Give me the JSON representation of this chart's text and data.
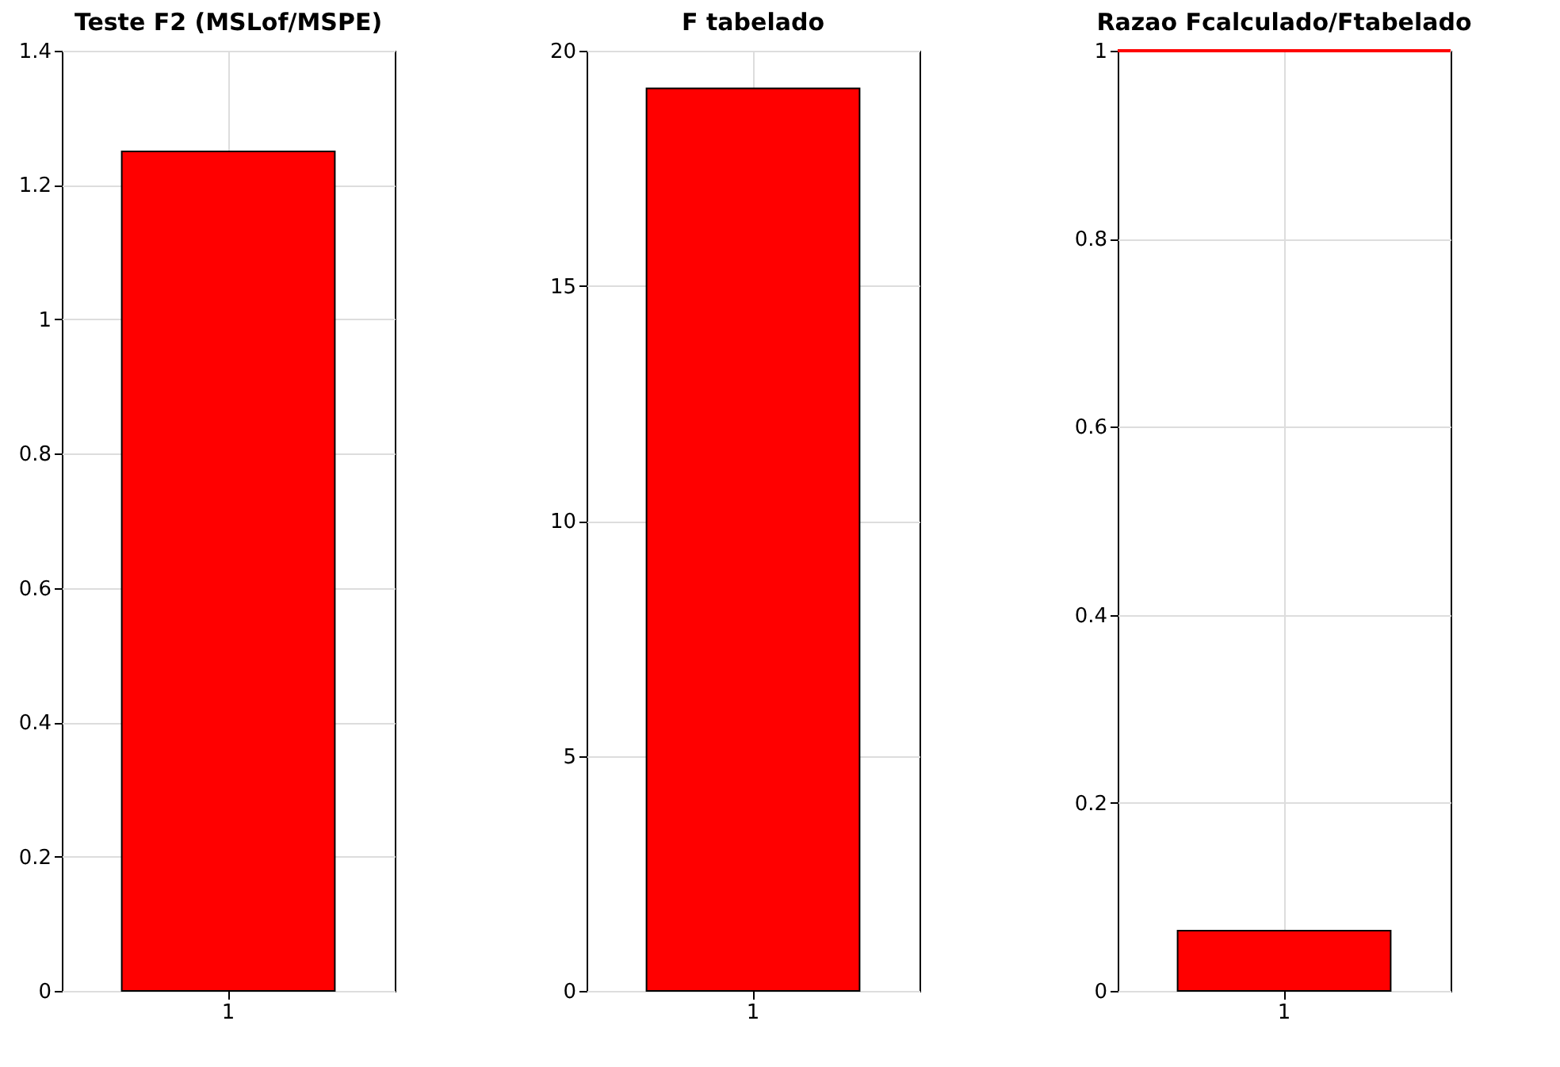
{
  "chart_data": [
    {
      "type": "bar",
      "title": "Teste F2 (MSLof/MSPE)",
      "categories": [
        "1"
      ],
      "values": [
        1.25
      ],
      "color": "#ff0000",
      "ylim": [
        0,
        1.4
      ],
      "yticks": [
        0,
        0.2,
        0.4,
        0.6,
        0.8,
        1,
        1.2,
        1.4
      ],
      "grid": true
    },
    {
      "type": "bar",
      "title": "F tabelado",
      "categories": [
        "1"
      ],
      "values": [
        19.2
      ],
      "color": "#ff0000",
      "ylim": [
        0,
        20
      ],
      "yticks": [
        0,
        5,
        10,
        15,
        20
      ],
      "grid": true
    },
    {
      "type": "bar",
      "title": "Razao Fcalculado/Ftabelado",
      "categories": [
        "1"
      ],
      "values": [
        0.064
      ],
      "color": "#ff0000",
      "ylim": [
        0,
        1
      ],
      "yticks": [
        0,
        0.2,
        0.4,
        0.6,
        0.8,
        1
      ],
      "grid": true,
      "ref_lines": [
        {
          "axis": "y",
          "value": 1,
          "color": "#ff0000"
        }
      ]
    }
  ]
}
